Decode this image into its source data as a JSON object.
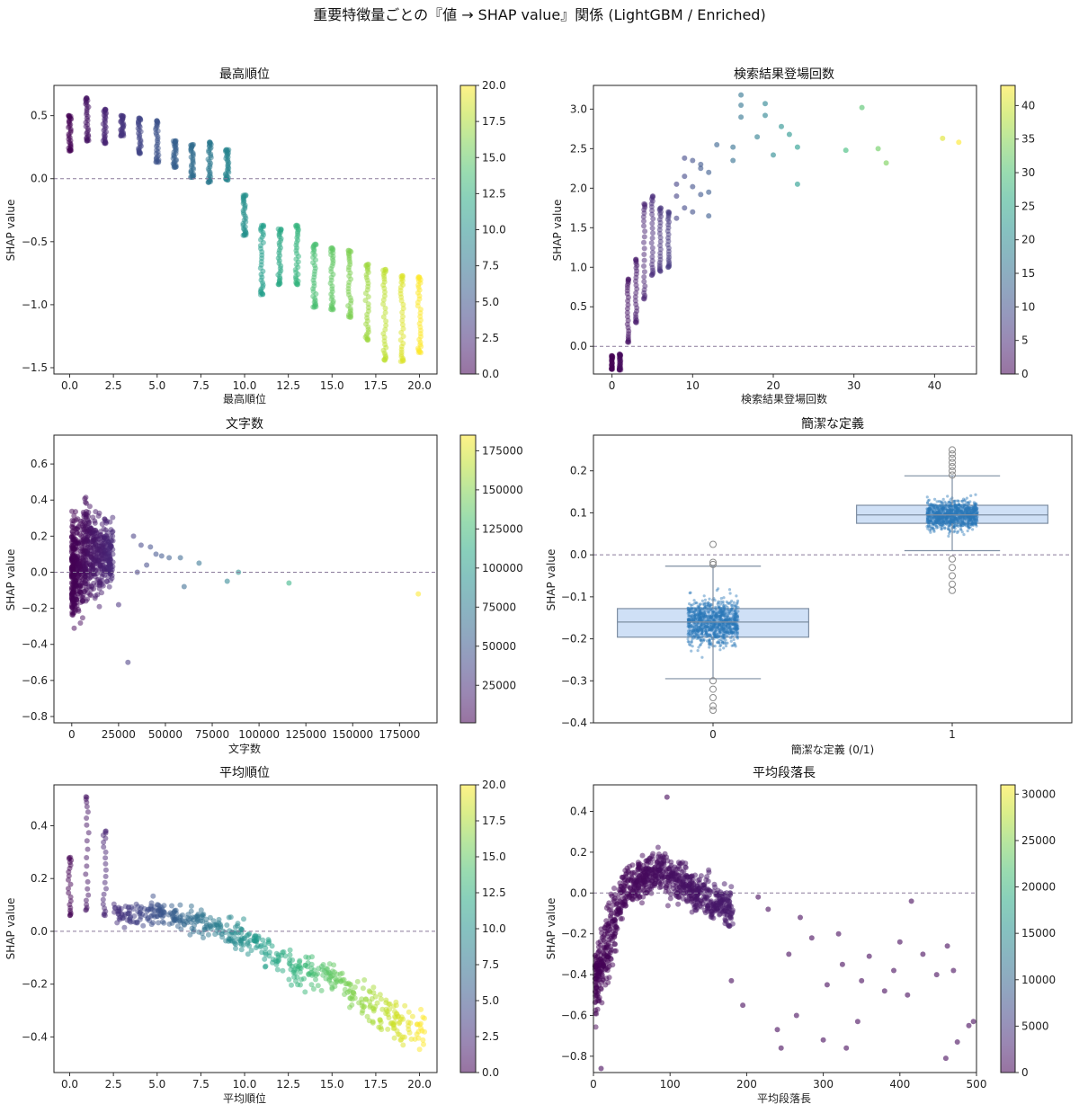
{
  "figure": {
    "title": "重要特徴量ごとの『値 → SHAP value』関係 (LightGBM / Enriched)"
  },
  "chart_data": [
    {
      "id": "max_rank",
      "type": "scatter",
      "title": "最高順位",
      "xlabel": "最高順位",
      "ylabel": "SHAP value",
      "xlim": [
        -0.9,
        21.0
      ],
      "ylim": [
        -1.55,
        0.74
      ],
      "xticks": [
        0,
        2.5,
        5,
        7.5,
        10,
        12.5,
        15,
        17.5,
        20
      ],
      "xticklabels": [
        "0.0",
        "2.5",
        "5.0",
        "7.5",
        "10.0",
        "12.5",
        "15.0",
        "17.5",
        "20.0"
      ],
      "yticks": [
        0.5,
        0,
        -0.5,
        -1.0,
        -1.5
      ],
      "yticklabels": [
        "0.5",
        "0.0",
        "−0.5",
        "−1.0",
        "−1.5"
      ],
      "reference_line": 0,
      "colorbar": {
        "colormap": "viridis",
        "range": [
          0,
          20
        ],
        "ticks": [
          0,
          2.5,
          5,
          7.5,
          10,
          12.5,
          15,
          17.5,
          20
        ],
        "ticklabels": [
          "0.0",
          "2.5",
          "5.0",
          "7.5",
          "10.0",
          "12.5",
          "15.0",
          "17.5",
          "20.0"
        ]
      },
      "columns": [
        {
          "x": 0,
          "ymin": 0.22,
          "ymax": 0.5
        },
        {
          "x": 1,
          "ymin": 0.3,
          "ymax": 0.64
        },
        {
          "x": 2,
          "ymin": 0.28,
          "ymax": 0.55
        },
        {
          "x": 3,
          "ymin": 0.34,
          "ymax": 0.5
        },
        {
          "x": 4,
          "ymin": 0.2,
          "ymax": 0.48
        },
        {
          "x": 5,
          "ymin": 0.13,
          "ymax": 0.46
        },
        {
          "x": 6,
          "ymin": 0.09,
          "ymax": 0.3
        },
        {
          "x": 7,
          "ymin": 0.01,
          "ymax": 0.27
        },
        {
          "x": 8,
          "ymin": -0.03,
          "ymax": 0.29
        },
        {
          "x": 9,
          "ymin": -0.01,
          "ymax": 0.23
        },
        {
          "x": 10,
          "ymin": -0.45,
          "ymax": -0.13
        },
        {
          "x": 11,
          "ymin": -0.92,
          "ymax": -0.37
        },
        {
          "x": 12,
          "ymin": -0.84,
          "ymax": -0.4
        },
        {
          "x": 13,
          "ymin": -0.84,
          "ymax": -0.37
        },
        {
          "x": 14,
          "ymin": -1.02,
          "ymax": -0.52
        },
        {
          "x": 15,
          "ymin": -1.04,
          "ymax": -0.55
        },
        {
          "x": 16,
          "ymin": -1.1,
          "ymax": -0.57
        },
        {
          "x": 17,
          "ymin": -1.28,
          "ymax": -0.68
        },
        {
          "x": 18,
          "ymin": -1.44,
          "ymax": -0.72
        },
        {
          "x": 19,
          "ymin": -1.45,
          "ymax": -0.77
        },
        {
          "x": 20,
          "ymin": -1.38,
          "ymax": -0.78
        }
      ]
    },
    {
      "id": "search_count",
      "type": "scatter",
      "title": "検索結果登場回数",
      "xlabel": "検索結果登場回数",
      "ylabel": "SHAP value",
      "xlim": [
        -2.3,
        45.2
      ],
      "ylim": [
        -0.35,
        3.3
      ],
      "xticks": [
        0,
        10,
        20,
        30,
        40
      ],
      "xticklabels": [
        "0",
        "10",
        "20",
        "30",
        "40"
      ],
      "yticks": [
        0,
        0.5,
        1.0,
        1.5,
        2.0,
        2.5,
        3.0
      ],
      "yticklabels": [
        "0.0",
        "0.5",
        "1.0",
        "1.5",
        "2.0",
        "2.5",
        "3.0"
      ],
      "reference_line": 0,
      "colorbar": {
        "colormap": "viridis",
        "range": [
          0,
          43
        ],
        "ticks": [
          0,
          5,
          10,
          15,
          20,
          25,
          30,
          35,
          40
        ],
        "ticklabels": [
          "0",
          "5",
          "10",
          "15",
          "20",
          "25",
          "30",
          "35",
          "40"
        ]
      },
      "columns": [
        {
          "x": 0,
          "ymin": -0.29,
          "ymax": -0.12
        },
        {
          "x": 1,
          "ymin": -0.3,
          "ymax": -0.1
        },
        {
          "x": 2,
          "ymin": 0.05,
          "ymax": 0.85
        },
        {
          "x": 3,
          "ymin": 0.3,
          "ymax": 1.1
        },
        {
          "x": 4,
          "ymin": 0.6,
          "ymax": 1.8
        },
        {
          "x": 5,
          "ymin": 0.9,
          "ymax": 1.9
        },
        {
          "x": 6,
          "ymin": 0.95,
          "ymax": 1.75
        },
        {
          "x": 7,
          "ymin": 1.0,
          "ymax": 1.7
        }
      ],
      "points": [
        {
          "x": 8,
          "y": 1.62
        },
        {
          "x": 8,
          "y": 1.9
        },
        {
          "x": 8,
          "y": 2.05
        },
        {
          "x": 9,
          "y": 1.75
        },
        {
          "x": 9,
          "y": 2.15
        },
        {
          "x": 9,
          "y": 2.38
        },
        {
          "x": 10,
          "y": 1.7
        },
        {
          "x": 10,
          "y": 2.02
        },
        {
          "x": 10,
          "y": 2.35
        },
        {
          "x": 11,
          "y": 1.92
        },
        {
          "x": 11,
          "y": 2.25
        },
        {
          "x": 11,
          "y": 2.3
        },
        {
          "x": 12,
          "y": 1.65
        },
        {
          "x": 12,
          "y": 1.95
        },
        {
          "x": 12,
          "y": 2.2
        },
        {
          "x": 13,
          "y": 2.55
        },
        {
          "x": 15,
          "y": 2.35
        },
        {
          "x": 15,
          "y": 2.52
        },
        {
          "x": 16,
          "y": 2.9
        },
        {
          "x": 16,
          "y": 3.05
        },
        {
          "x": 16,
          "y": 3.18
        },
        {
          "x": 18,
          "y": 2.65
        },
        {
          "x": 19,
          "y": 2.92
        },
        {
          "x": 19,
          "y": 3.07
        },
        {
          "x": 20,
          "y": 2.42
        },
        {
          "x": 21,
          "y": 2.78
        },
        {
          "x": 22,
          "y": 2.68
        },
        {
          "x": 23,
          "y": 2.52
        },
        {
          "x": 23,
          "y": 2.05
        },
        {
          "x": 29,
          "y": 2.48
        },
        {
          "x": 31,
          "y": 3.02
        },
        {
          "x": 33,
          "y": 2.5
        },
        {
          "x": 34,
          "y": 2.32
        },
        {
          "x": 41,
          "y": 2.63
        },
        {
          "x": 43,
          "y": 2.58
        }
      ]
    },
    {
      "id": "char_count",
      "type": "scatter",
      "title": "文字数",
      "xlabel": "文字数",
      "ylabel": "SHAP value",
      "xlim": [
        -9500,
        195000
      ],
      "ylim": [
        -0.835,
        0.76
      ],
      "xticks": [
        0,
        25000,
        50000,
        75000,
        100000,
        125000,
        150000,
        175000
      ],
      "xticklabels": [
        "0",
        "25000",
        "50000",
        "75000",
        "100000",
        "125000",
        "150000",
        "175000"
      ],
      "yticks": [
        0.6,
        0.4,
        0.2,
        0,
        -0.2,
        -0.4,
        -0.6,
        -0.8
      ],
      "yticklabels": [
        "0.6",
        "0.4",
        "0.2",
        "0.0",
        "−0.2",
        "−0.4",
        "−0.6",
        "−0.8"
      ],
      "reference_line": 0,
      "colorbar": {
        "colormap": "viridis",
        "range": [
          1000,
          185000
        ],
        "ticks": [
          25000,
          50000,
          75000,
          100000,
          125000,
          150000,
          175000
        ],
        "ticklabels": [
          "25000",
          "50000",
          "75000",
          "100000",
          "125000",
          "150000",
          "175000"
        ]
      },
      "points": [
        {
          "x": 33000,
          "y": 0.2
        },
        {
          "x": 37000,
          "y": 0.15
        },
        {
          "x": 42000,
          "y": 0.14
        },
        {
          "x": 45000,
          "y": 0.1
        },
        {
          "x": 48000,
          "y": 0.09
        },
        {
          "x": 52000,
          "y": 0.08
        },
        {
          "x": 58000,
          "y": 0.08
        },
        {
          "x": 60000,
          "y": -0.08
        },
        {
          "x": 68000,
          "y": 0.05
        },
        {
          "x": 83000,
          "y": -0.05
        },
        {
          "x": 89000,
          "y": 0.0
        },
        {
          "x": 116000,
          "y": -0.06
        },
        {
          "x": 185000,
          "y": -0.12
        },
        {
          "x": 30000,
          "y": -0.5
        },
        {
          "x": 25000,
          "y": -0.18
        },
        {
          "x": 40000,
          "y": 0.04
        },
        {
          "x": 35000,
          "y": 0.0
        }
      ]
    },
    {
      "id": "concise_definition",
      "type": "box",
      "title": "簡潔な定義",
      "xlabel": "簡潔な定義 (0/1)",
      "ylabel": "SHAP value",
      "xlim": [
        -0.5,
        1.5
      ],
      "ylim": [
        -0.4,
        0.285
      ],
      "categories": [
        "0",
        "1"
      ],
      "yticks": [
        0.2,
        0.1,
        0.0,
        -0.1,
        -0.2,
        -0.3,
        -0.4
      ],
      "yticklabels": [
        "0.2",
        "0.1",
        "0.0",
        "−0.1",
        "−0.2",
        "−0.3",
        "−0.4"
      ],
      "reference_line": 0,
      "boxes": [
        {
          "category": "0",
          "q1": -0.196,
          "median": -0.16,
          "q3": -0.128,
          "whisker_low": -0.295,
          "whisker_high": -0.027,
          "outliers": [
            0.025,
            -0.018,
            -0.023,
            -0.3,
            -0.32,
            -0.34,
            -0.36,
            -0.37
          ]
        },
        {
          "category": "1",
          "q1": 0.075,
          "median": 0.095,
          "q3": 0.118,
          "whisker_low": 0.01,
          "whisker_high": 0.188,
          "outliers": [
            0.19,
            0.2,
            0.21,
            0.22,
            0.23,
            0.24,
            0.25,
            -0.01,
            -0.03,
            -0.05,
            -0.07,
            -0.085
          ]
        }
      ]
    },
    {
      "id": "avg_rank",
      "type": "scatter",
      "title": "平均順位",
      "xlabel": "平均順位",
      "ylabel": "SHAP value",
      "xlim": [
        -0.9,
        21.0
      ],
      "ylim": [
        -0.535,
        0.555
      ],
      "xticks": [
        0,
        2.5,
        5,
        7.5,
        10,
        12.5,
        15,
        17.5,
        20
      ],
      "xticklabels": [
        "0.0",
        "2.5",
        "5.0",
        "7.5",
        "10.0",
        "12.5",
        "15.0",
        "17.5",
        "20.0"
      ],
      "yticks": [
        0.4,
        0.2,
        0,
        -0.2,
        -0.4
      ],
      "yticklabels": [
        "0.4",
        "0.2",
        "0.0",
        "−0.2",
        "−0.4"
      ],
      "reference_line": 0,
      "colorbar": {
        "colormap": "viridis",
        "range": [
          0,
          20
        ],
        "ticks": [
          0,
          2.5,
          5,
          7.5,
          10,
          12.5,
          15,
          17.5,
          20
        ],
        "ticklabels": [
          "0.0",
          "2.5",
          "5.0",
          "7.5",
          "10.0",
          "12.5",
          "15.0",
          "17.5",
          "20.0"
        ]
      },
      "columns": [
        {
          "x": 0,
          "ymin": 0.06,
          "ymax": 0.28
        },
        {
          "x": 1,
          "ymin": 0.08,
          "ymax": 0.51
        },
        {
          "x": 2,
          "ymin": 0.06,
          "ymax": 0.38
        }
      ],
      "trend": [
        {
          "x": 2.5,
          "center": 0.06,
          "spread": 0.06
        },
        {
          "x": 5,
          "center": 0.07,
          "spread": 0.06
        },
        {
          "x": 7.5,
          "center": 0.04,
          "spread": 0.07
        },
        {
          "x": 10,
          "center": -0.02,
          "spread": 0.06
        },
        {
          "x": 12.5,
          "center": -0.13,
          "spread": 0.08
        },
        {
          "x": 15,
          "center": -0.17,
          "spread": 0.07
        },
        {
          "x": 17.5,
          "center": -0.3,
          "spread": 0.09
        },
        {
          "x": 20,
          "center": -0.38,
          "spread": 0.12
        }
      ]
    },
    {
      "id": "avg_paragraph_length",
      "type": "scatter",
      "title": "平均段落長",
      "xlabel": "平均段落長",
      "ylabel": "SHAP value",
      "xlim": [
        0,
        500
      ],
      "ylim": [
        -0.88,
        0.53
      ],
      "xticks": [
        0,
        100,
        200,
        300,
        400,
        500
      ],
      "xticklabels": [
        "0",
        "100",
        "200",
        "300",
        "400",
        "500"
      ],
      "yticks": [
        0.4,
        0.2,
        0,
        -0.2,
        -0.4,
        -0.6,
        -0.8
      ],
      "yticklabels": [
        "0.4",
        "0.2",
        "0.0",
        "−0.2",
        "−0.4",
        "−0.6",
        "−0.8"
      ],
      "reference_line": 0,
      "colorbar": {
        "colormap": "viridis",
        "range": [
          0,
          31000
        ],
        "ticks": [
          0,
          5000,
          10000,
          15000,
          20000,
          25000,
          30000
        ],
        "ticklabels": [
          "0",
          "5000",
          "10000",
          "15000",
          "20000",
          "25000",
          "30000"
        ]
      },
      "points": [
        {
          "x": 96,
          "y": 0.47
        },
        {
          "x": 240,
          "y": -0.67
        },
        {
          "x": 245,
          "y": -0.76
        },
        {
          "x": 265,
          "y": -0.6
        },
        {
          "x": 300,
          "y": -0.72
        },
        {
          "x": 305,
          "y": -0.45
        },
        {
          "x": 320,
          "y": -0.2
        },
        {
          "x": 325,
          "y": -0.35
        },
        {
          "x": 330,
          "y": -0.76
        },
        {
          "x": 345,
          "y": -0.63
        },
        {
          "x": 350,
          "y": -0.43
        },
        {
          "x": 360,
          "y": -0.31
        },
        {
          "x": 380,
          "y": -0.48
        },
        {
          "x": 392,
          "y": -0.38
        },
        {
          "x": 400,
          "y": -0.24
        },
        {
          "x": 410,
          "y": -0.5
        },
        {
          "x": 415,
          "y": -0.04
        },
        {
          "x": 430,
          "y": -0.3
        },
        {
          "x": 448,
          "y": -0.4
        },
        {
          "x": 460,
          "y": -0.81
        },
        {
          "x": 462,
          "y": -0.26
        },
        {
          "x": 470,
          "y": -0.38
        },
        {
          "x": 475,
          "y": -0.73
        },
        {
          "x": 490,
          "y": -0.65
        },
        {
          "x": 496,
          "y": -0.63
        },
        {
          "x": 215,
          "y": -0.02
        },
        {
          "x": 228,
          "y": -0.08
        },
        {
          "x": 255,
          "y": -0.3
        },
        {
          "x": 270,
          "y": -0.12
        },
        {
          "x": 285,
          "y": -0.22
        },
        {
          "x": 195,
          "y": -0.55
        },
        {
          "x": 180,
          "y": -0.43
        },
        {
          "x": 10,
          "y": -0.86
        }
      ]
    }
  ]
}
